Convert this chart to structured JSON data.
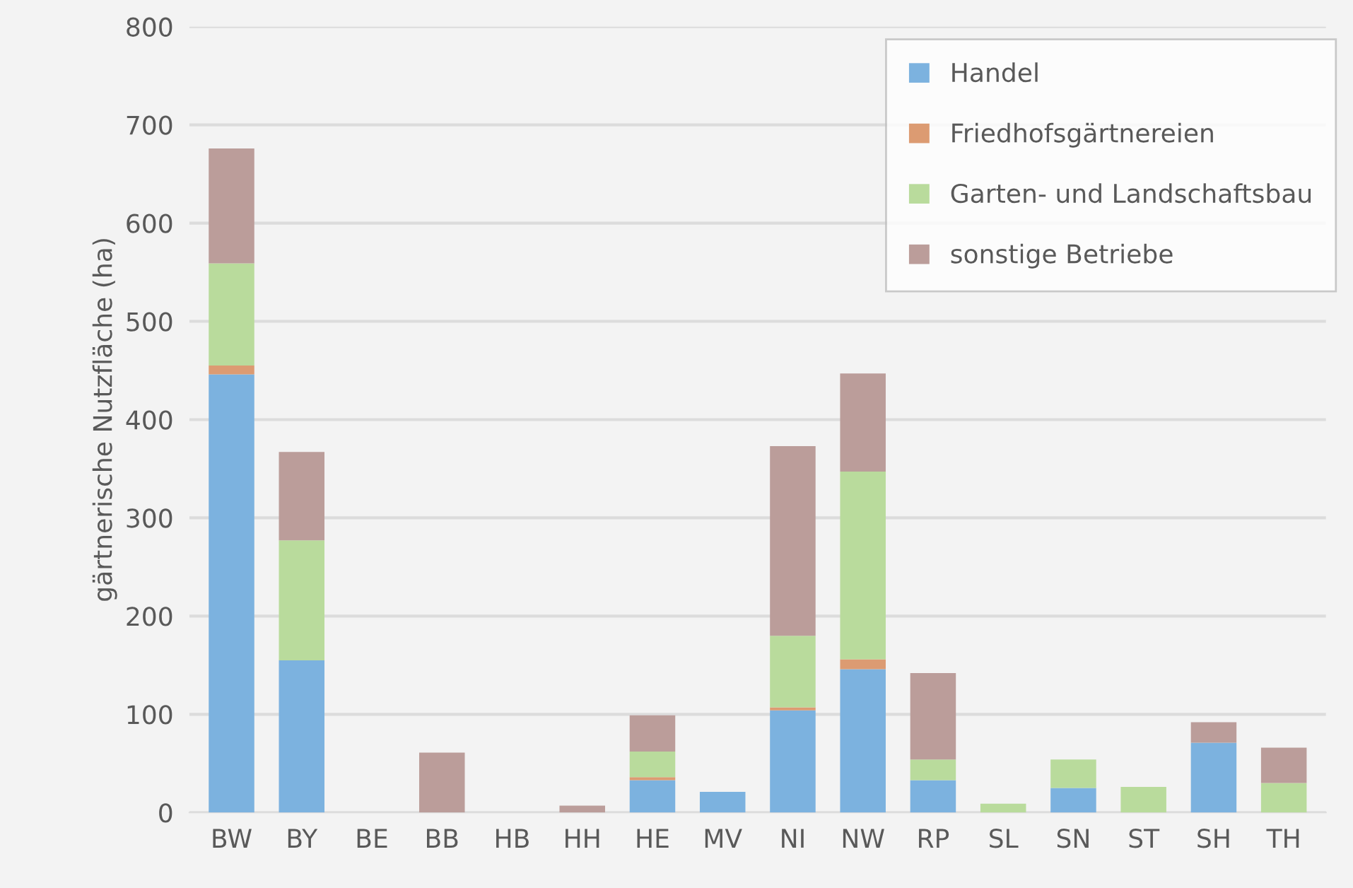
{
  "chart_data": {
    "type": "bar",
    "stacked": true,
    "ylabel": "gärtnerische Nutzfläche (ha)",
    "categories": [
      "BW",
      "BY",
      "BE",
      "BB",
      "HB",
      "HH",
      "HE",
      "MV",
      "NI",
      "NW",
      "RP",
      "SL",
      "SN",
      "ST",
      "SH",
      "TH"
    ],
    "series": [
      {
        "name": "Handel",
        "color": "#7cb2df",
        "values": [
          446,
          155,
          0,
          0,
          0,
          0,
          33,
          21,
          104,
          146,
          33,
          0,
          25,
          0,
          71,
          0
        ]
      },
      {
        "name": "Friedhofsgärtnereien",
        "color": "#dc9b72",
        "values": [
          9,
          0,
          0,
          0,
          0,
          0,
          3,
          0,
          3,
          10,
          0,
          0,
          0,
          0,
          0,
          0
        ]
      },
      {
        "name": "Garten- und Landschaftsbau",
        "color": "#b9db9c",
        "values": [
          104,
          122,
          0,
          0,
          0,
          0,
          26,
          0,
          73,
          191,
          21,
          9,
          29,
          26,
          0,
          30
        ]
      },
      {
        "name": "sonstige Betriebe",
        "color": "#bb9d9a",
        "values": [
          117,
          90,
          0,
          61,
          0,
          7,
          37,
          0,
          193,
          100,
          88,
          0,
          0,
          0,
          21,
          36
        ]
      }
    ],
    "ylim": [
      0,
      800
    ],
    "yticks": [
      0,
      100,
      200,
      300,
      400,
      500,
      600,
      700,
      800
    ],
    "grid": "y",
    "legend": "top right"
  }
}
